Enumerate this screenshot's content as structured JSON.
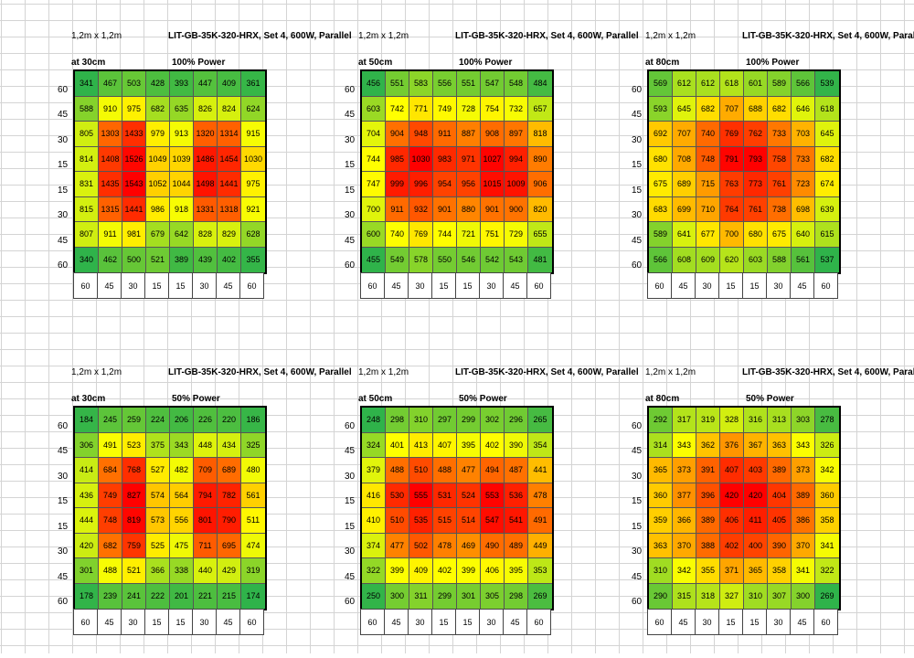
{
  "colors": {
    "low": "#2fb34a",
    "mid": "#ffff00",
    "high": "#ff0000"
  },
  "y_labels": [
    "60",
    "45",
    "30",
    "15",
    "15",
    "30",
    "45",
    "60"
  ],
  "x_labels": [
    "60",
    "45",
    "30",
    "15",
    "15",
    "30",
    "45",
    "60"
  ],
  "panels": [
    {
      "area": "1,2m x 1,2m",
      "title": "LIT-GB-35K-320-HRX, Set 4, 600W, Parallel",
      "height": "at 30cm",
      "power": "100% Power",
      "grid": [
        [
          341,
          467,
          503,
          428,
          393,
          447,
          409,
          361
        ],
        [
          588,
          910,
          975,
          682,
          635,
          826,
          824,
          624
        ],
        [
          805,
          1303,
          1433,
          979,
          913,
          1320,
          1314,
          915
        ],
        [
          814,
          1408,
          1526,
          1049,
          1039,
          1486,
          1454,
          1030
        ],
        [
          831,
          1435,
          1543,
          1052,
          1044,
          1498,
          1441,
          975
        ],
        [
          815,
          1315,
          1441,
          986,
          918,
          1331,
          1318,
          921
        ],
        [
          807,
          911,
          981,
          679,
          642,
          828,
          829,
          628
        ],
        [
          340,
          462,
          500,
          521,
          389,
          439,
          402,
          355
        ]
      ]
    },
    {
      "area": "1,2m x 1,2m",
      "title": "LIT-GB-35K-320-HRX, Set 4, 600W, Parallel",
      "height": "at 50cm",
      "power": "100% Power",
      "grid": [
        [
          456,
          551,
          583,
          556,
          551,
          547,
          548,
          484
        ],
        [
          603,
          742,
          771,
          749,
          728,
          754,
          732,
          657
        ],
        [
          704,
          904,
          948,
          911,
          887,
          908,
          897,
          818
        ],
        [
          744,
          985,
          1030,
          983,
          971,
          1027,
          994,
          890
        ],
        [
          747,
          999,
          996,
          954,
          956,
          1015,
          1009,
          906
        ],
        [
          700,
          911,
          932,
          901,
          880,
          901,
          900,
          820
        ],
        [
          600,
          740,
          769,
          744,
          721,
          751,
          729,
          655
        ],
        [
          455,
          549,
          578,
          550,
          546,
          542,
          543,
          481
        ]
      ]
    },
    {
      "area": "1,2m x 1,2m",
      "title": "LIT-GB-35K-320-HRX, Set 4, 600W, Parallel",
      "height": "at 80cm",
      "power": "100% Power",
      "grid": [
        [
          569,
          612,
          612,
          618,
          601,
          589,
          566,
          539
        ],
        [
          593,
          645,
          682,
          707,
          688,
          682,
          646,
          618
        ],
        [
          692,
          707,
          740,
          769,
          762,
          733,
          703,
          645
        ],
        [
          680,
          708,
          748,
          791,
          793,
          758,
          733,
          682
        ],
        [
          675,
          689,
          715,
          763,
          773,
          761,
          723,
          674
        ],
        [
          683,
          699,
          710,
          764,
          761,
          738,
          698,
          639
        ],
        [
          589,
          641,
          677,
          700,
          680,
          675,
          640,
          615
        ],
        [
          566,
          608,
          609,
          620,
          603,
          588,
          561,
          537
        ]
      ]
    },
    {
      "area": "1,2m x 1,2m",
      "title": "LIT-GB-35K-320-HRX, Set 4, 600W, Parallel",
      "height": "at 30cm",
      "power": "50% Power",
      "grid": [
        [
          184,
          245,
          259,
          224,
          206,
          226,
          220,
          186
        ],
        [
          306,
          491,
          523,
          375,
          343,
          448,
          434,
          325
        ],
        [
          414,
          684,
          768,
          527,
          482,
          709,
          689,
          480
        ],
        [
          436,
          749,
          827,
          574,
          564,
          794,
          782,
          561
        ],
        [
          444,
          748,
          819,
          573,
          556,
          801,
          790,
          511
        ],
        [
          420,
          682,
          759,
          525,
          475,
          711,
          695,
          474
        ],
        [
          301,
          488,
          521,
          366,
          338,
          440,
          429,
          319
        ],
        [
          178,
          239,
          241,
          222,
          201,
          221,
          215,
          174
        ]
      ]
    },
    {
      "area": "1,2m x 1,2m",
      "title": "LIT-GB-35K-320-HRX, Set 4, 600W, Parallel",
      "height": "at 50cm",
      "power": "50% Power",
      "grid": [
        [
          248,
          298,
          310,
          297,
          299,
          302,
          296,
          265
        ],
        [
          324,
          401,
          413,
          407,
          395,
          402,
          390,
          354
        ],
        [
          379,
          488,
          510,
          488,
          477,
          494,
          487,
          441
        ],
        [
          416,
          530,
          555,
          531,
          524,
          553,
          536,
          478
        ],
        [
          410,
          510,
          535,
          515,
          514,
          547,
          541,
          491
        ],
        [
          374,
          477,
          502,
          478,
          469,
          490,
          489,
          449
        ],
        [
          322,
          399,
          409,
          402,
          399,
          406,
          395,
          353
        ],
        [
          250,
          300,
          311,
          299,
          301,
          305,
          298,
          269
        ]
      ]
    },
    {
      "area": "1,2m x 1,2m",
      "title": "LIT-GB-35K-320-HRX, Set 4, 600W, Parallel",
      "height": "at 80cm",
      "power": "50% Power",
      "grid": [
        [
          292,
          317,
          319,
          328,
          316,
          313,
          303,
          278
        ],
        [
          314,
          343,
          362,
          376,
          367,
          363,
          343,
          326
        ],
        [
          365,
          373,
          391,
          407,
          403,
          389,
          373,
          342
        ],
        [
          360,
          377,
          396,
          420,
          420,
          404,
          389,
          360
        ],
        [
          359,
          366,
          389,
          406,
          411,
          405,
          386,
          358
        ],
        [
          363,
          370,
          388,
          402,
          400,
          390,
          370,
          341
        ],
        [
          310,
          342,
          355,
          371,
          365,
          358,
          341,
          322
        ],
        [
          290,
          315,
          318,
          327,
          310,
          307,
          300,
          269
        ]
      ]
    }
  ]
}
